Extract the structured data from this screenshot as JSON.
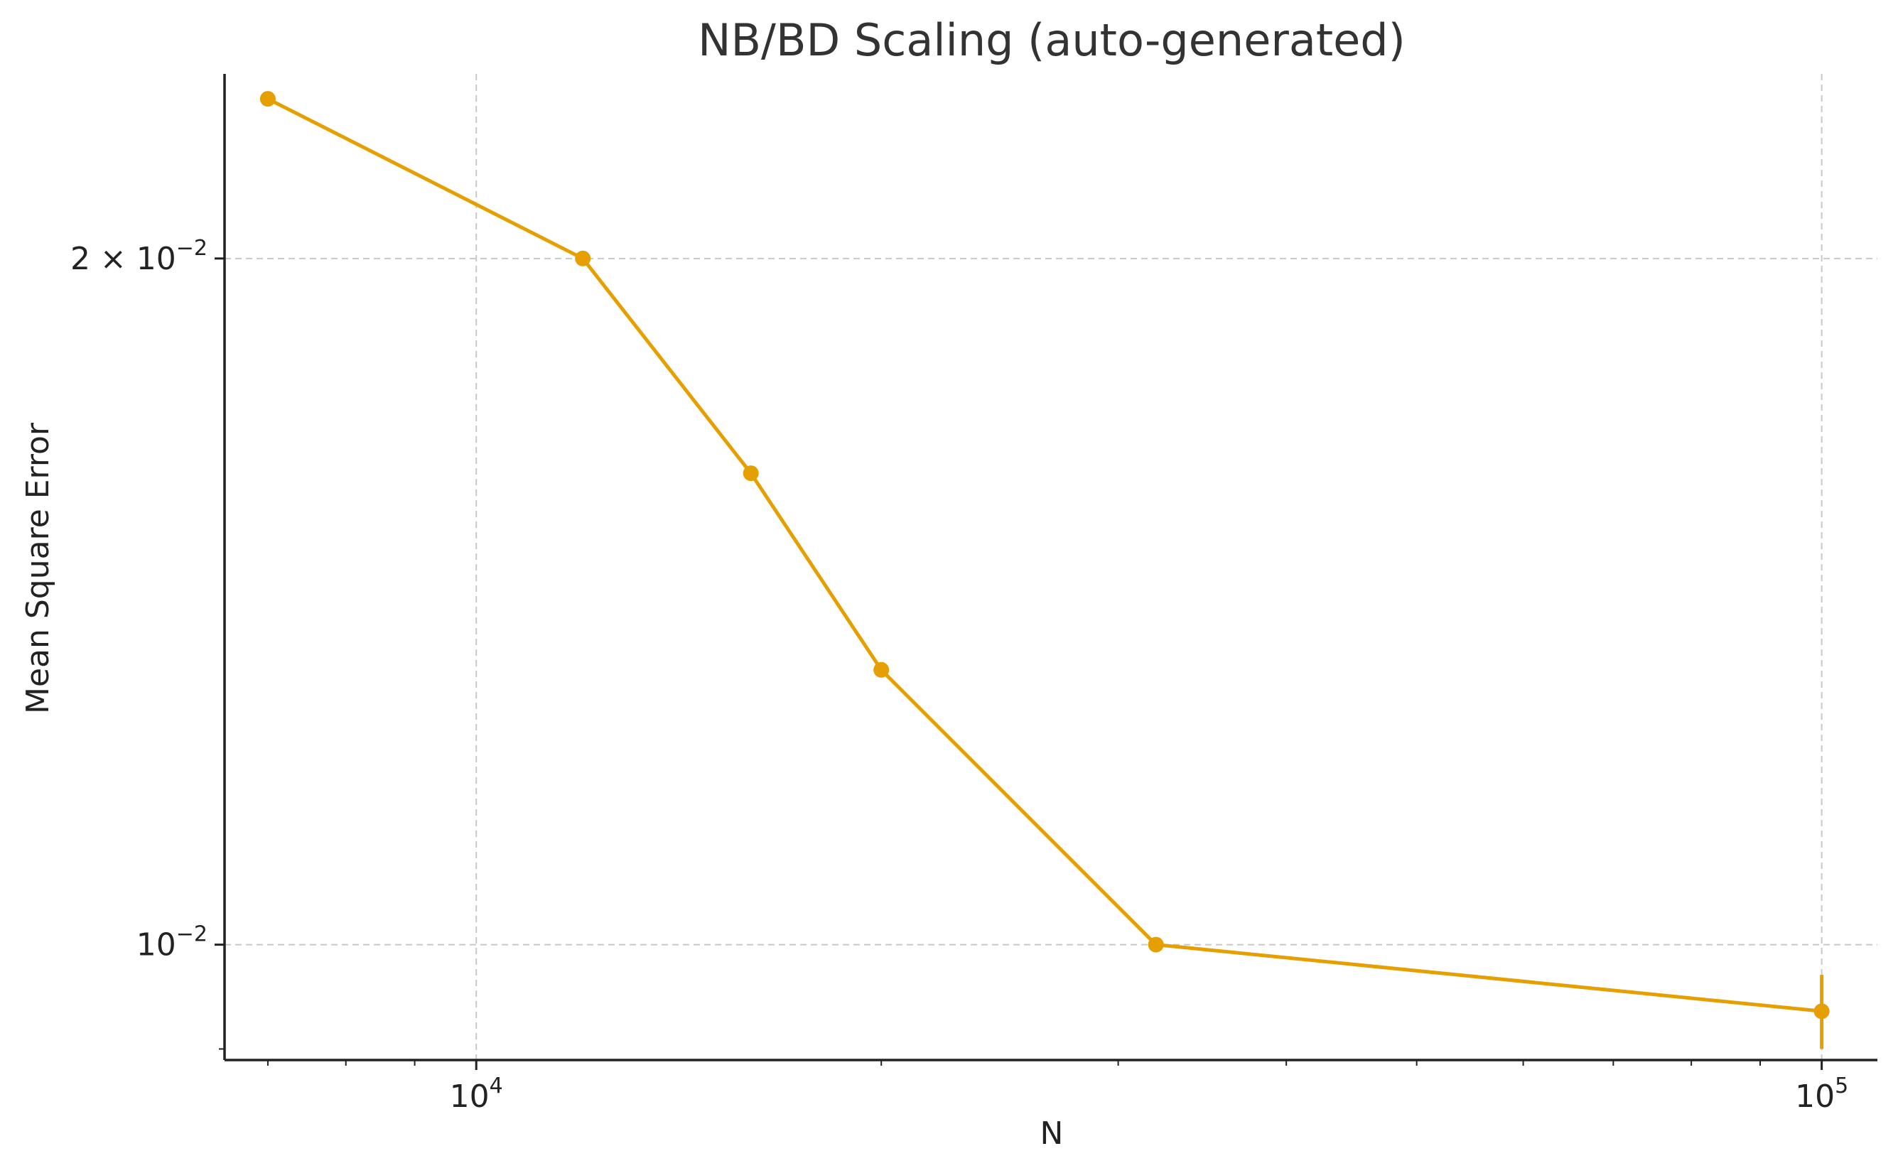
{
  "chart_data": {
    "type": "line",
    "title": "NB/BD Scaling (auto-generated)",
    "xlabel": "N",
    "ylabel": "Mean Square Error",
    "xscale": "log",
    "yscale": "log",
    "xlim": [
      6500,
      110000
    ],
    "ylim": [
      0.0089,
      0.0241
    ],
    "grid": true,
    "x_ticks": [
      {
        "value": 10000,
        "base": "10",
        "exp": "4"
      },
      {
        "value": 100000,
        "base": "10",
        "exp": "5"
      }
    ],
    "y_ticks": [
      {
        "value": 0.01,
        "base": "10",
        "exp": "−2"
      },
      {
        "value": 0.02,
        "base": "2 × 10",
        "exp": "−2"
      }
    ],
    "series": [
      {
        "color": "#e69f00",
        "x": [
          7000,
          12000,
          16000,
          20000,
          32000,
          100000
        ],
        "y": [
          0.0235,
          0.02,
          0.0161,
          0.0132,
          0.01,
          0.00935
        ],
        "yerr": [
          0,
          0,
          0,
          0,
          0,
          0.00035
        ]
      }
    ]
  }
}
